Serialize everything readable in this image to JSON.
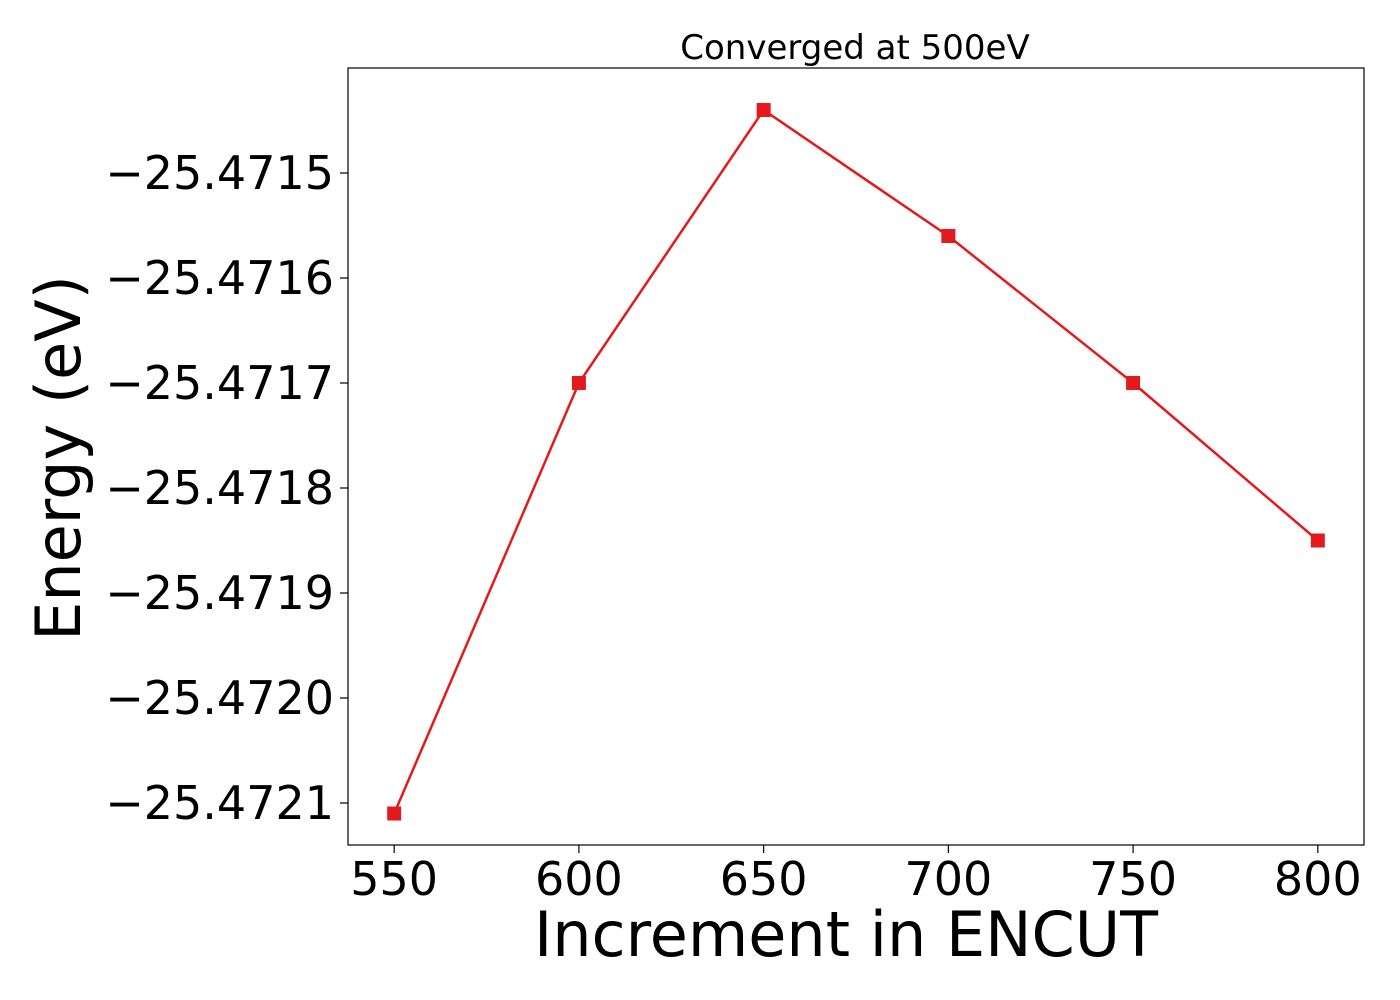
{
  "chart_data": {
    "type": "line",
    "title": "Converged at 500eV",
    "xlabel": "Increment in ENCUT",
    "ylabel": "Energy (eV)",
    "x": [
      550,
      600,
      650,
      700,
      750,
      800
    ],
    "series": [
      {
        "values": [
          -25.47211,
          -25.4717,
          -25.47144,
          -25.47156,
          -25.4717,
          -25.47185
        ],
        "color": "#e31a1c",
        "marker": "square"
      }
    ],
    "x_ticks": [
      550,
      600,
      650,
      700,
      750,
      800
    ],
    "x_tick_labels": [
      "550",
      "600",
      "650",
      "700",
      "750",
      "800"
    ],
    "y_ticks": [
      -25.4715,
      -25.4716,
      -25.4717,
      -25.4718,
      -25.4719,
      -25.472,
      -25.4721
    ],
    "y_tick_labels": [
      "−25.4715",
      "−25.4716",
      "−25.4717",
      "−25.4718",
      "−25.4719",
      "−25.4720",
      "−25.4721"
    ],
    "xlim": [
      537.5,
      812.5
    ],
    "ylim": [
      -25.47214,
      -25.4714
    ],
    "grid": false,
    "legend": false
  }
}
